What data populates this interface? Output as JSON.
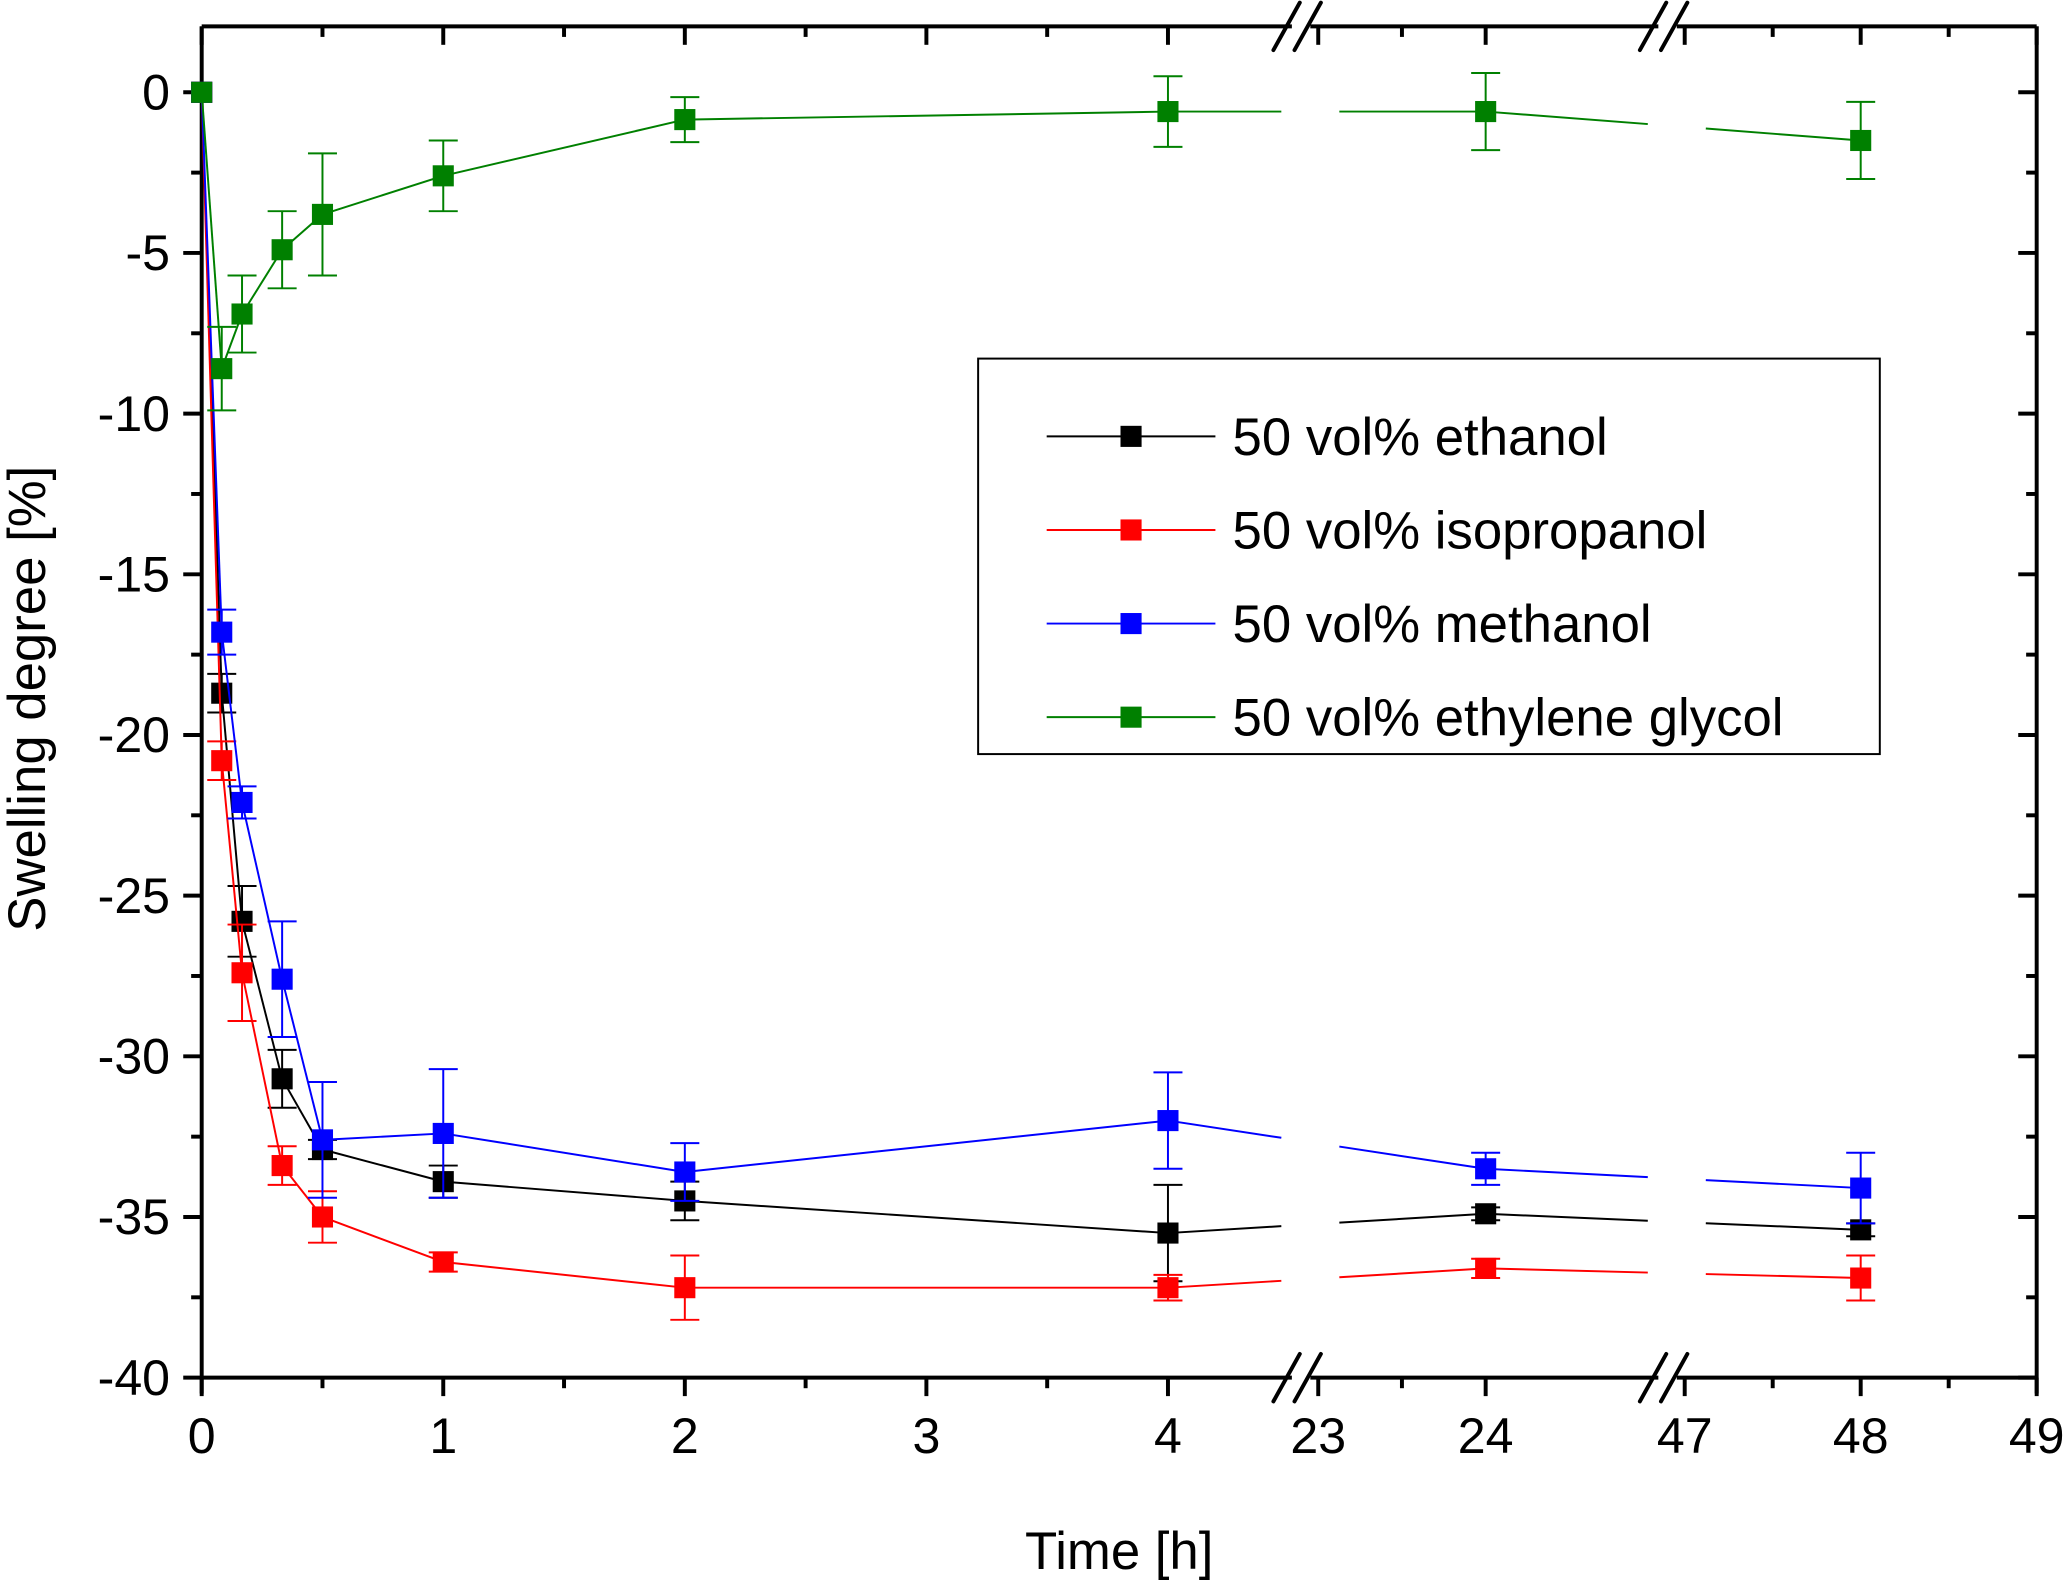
{
  "chart_data": {
    "type": "line",
    "title": "",
    "xlabel": "Time [h]",
    "ylabel": "Swelling degree [%]",
    "ylim": [
      -40,
      2
    ],
    "y_ticks": [
      0,
      -5,
      -10,
      -15,
      -20,
      -25,
      -30,
      -35,
      -40
    ],
    "y_tick_labels": [
      "0",
      "-5",
      "-10",
      "-15",
      "-20",
      "-25",
      "-30",
      "-35",
      "-40"
    ],
    "x_axis_segments": [
      [
        0,
        4
      ],
      [
        23,
        24
      ],
      [
        47,
        49
      ]
    ],
    "x_axis_breaks": [
      [
        4,
        23
      ],
      [
        24,
        47
      ]
    ],
    "x_ticks": [
      0,
      1,
      2,
      3,
      4,
      23,
      24,
      47,
      48,
      49
    ],
    "x_tick_labels": [
      "0",
      "1",
      "2",
      "3",
      "4",
      "23",
      "24",
      "47",
      "48",
      "49"
    ],
    "grid": false,
    "legend_position": "center-right",
    "x": [
      0,
      0.083,
      0.167,
      0.333,
      0.5,
      1,
      2,
      4,
      24,
      48
    ],
    "series": [
      {
        "name": "50 vol% ethanol",
        "color": "#000000",
        "values": [
          0,
          -18.7,
          -25.8,
          -30.7,
          -32.9,
          -33.9,
          -34.5,
          -35.5,
          -34.9,
          -35.4
        ],
        "errors": [
          0,
          0.6,
          1.1,
          0.9,
          0.3,
          0.5,
          0.6,
          1.5,
          0.2,
          0.2
        ]
      },
      {
        "name": "50 vol% isopropanol",
        "color": "#ff0000",
        "values": [
          0,
          -20.8,
          -27.4,
          -33.4,
          -35.0,
          -36.4,
          -37.2,
          -37.2,
          -36.6,
          -36.9
        ],
        "errors": [
          0,
          0.6,
          1.5,
          0.6,
          0.8,
          0.3,
          1.0,
          0.4,
          0.3,
          0.7
        ]
      },
      {
        "name": "50 vol% methanol",
        "color": "#0000ff",
        "values": [
          0,
          -16.8,
          -22.1,
          -27.6,
          -32.6,
          -32.4,
          -33.6,
          -32.0,
          -33.5,
          -34.1
        ],
        "errors": [
          0,
          0.7,
          0.5,
          1.8,
          1.8,
          2.0,
          0.9,
          1.5,
          0.5,
          1.1
        ]
      },
      {
        "name": "50 vol% ethylene glycol",
        "color": "#008000",
        "values": [
          0,
          -8.6,
          -6.9,
          -4.9,
          -3.8,
          -2.6,
          -0.85,
          -0.6,
          -0.6,
          -1.5
        ],
        "errors": [
          0,
          1.3,
          1.2,
          1.2,
          1.9,
          1.1,
          0.7,
          1.1,
          1.2,
          1.2
        ]
      }
    ]
  }
}
